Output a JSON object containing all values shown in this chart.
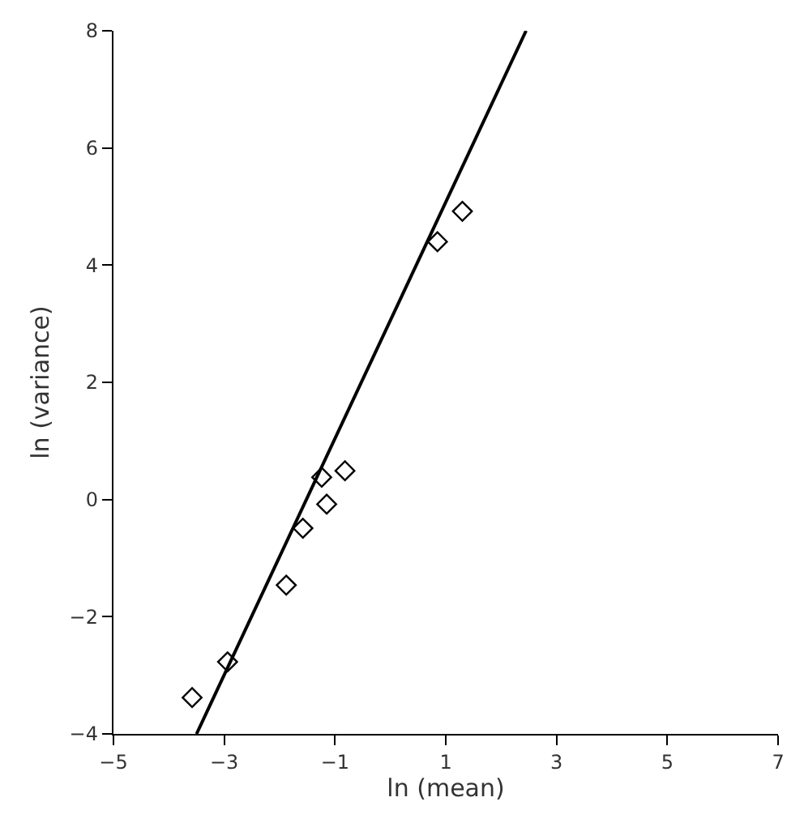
{
  "chart_data": {
    "type": "scatter",
    "xlabel": "ln (mean)",
    "ylabel": "ln (variance)",
    "xlim": [
      -5,
      7
    ],
    "xticks": [
      -5,
      -3,
      -1,
      1,
      3,
      5,
      7
    ],
    "ylim": [
      -4,
      8
    ],
    "yticks": [
      -4,
      -2,
      0,
      2,
      4,
      6,
      8
    ],
    "series": [
      {
        "marker": "diamond",
        "color": "#000000",
        "x": [
          -3.58,
          -2.94,
          -1.88,
          -1.58,
          -1.24,
          -1.15,
          -0.82,
          0.85,
          1.3
        ],
        "values": [
          -3.38,
          -2.77,
          -1.46,
          -0.49,
          0.38,
          -0.08,
          0.49,
          4.4,
          4.92
        ]
      },
      {
        "type": "line",
        "color": "#000000",
        "x": [
          -3.5,
          2.45
        ],
        "values": [
          -4,
          8
        ],
        "marker": "none",
        "line_style": "solid"
      }
    ]
  }
}
